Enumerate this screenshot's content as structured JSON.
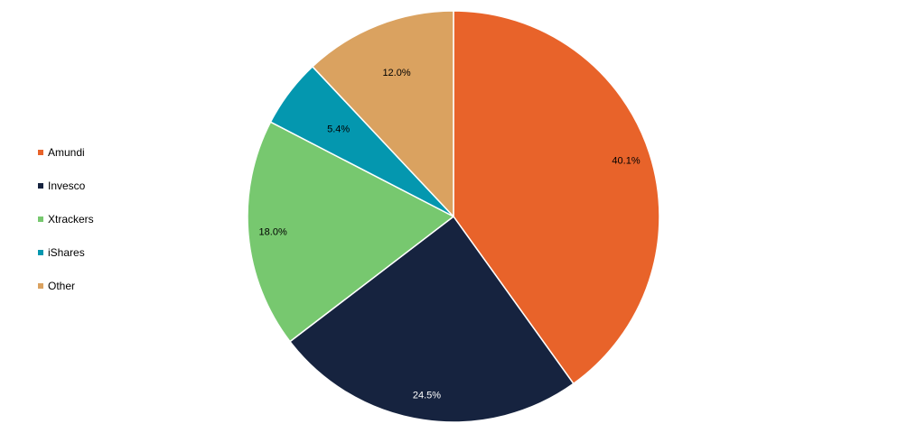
{
  "chart_data": {
    "type": "pie",
    "categories": [
      "Amundi",
      "Invesco",
      "Xtrackers",
      "iShares",
      "Other"
    ],
    "values": [
      40.1,
      24.5,
      18.0,
      5.4,
      12.0
    ],
    "data_labels": [
      "40.1%",
      "24.5%",
      "18.0%",
      "5.4%",
      "12.0%"
    ],
    "colors": [
      "#E8632A",
      "#16233F",
      "#77C86F",
      "#0497AF",
      "#DAA260"
    ],
    "label_colors": [
      "#000000",
      "#FFFFFF",
      "#000000",
      "#000000",
      "#000000"
    ],
    "start_angle": "12 o'clock",
    "direction": "clockwise",
    "legend_position": "left",
    "title": ""
  }
}
